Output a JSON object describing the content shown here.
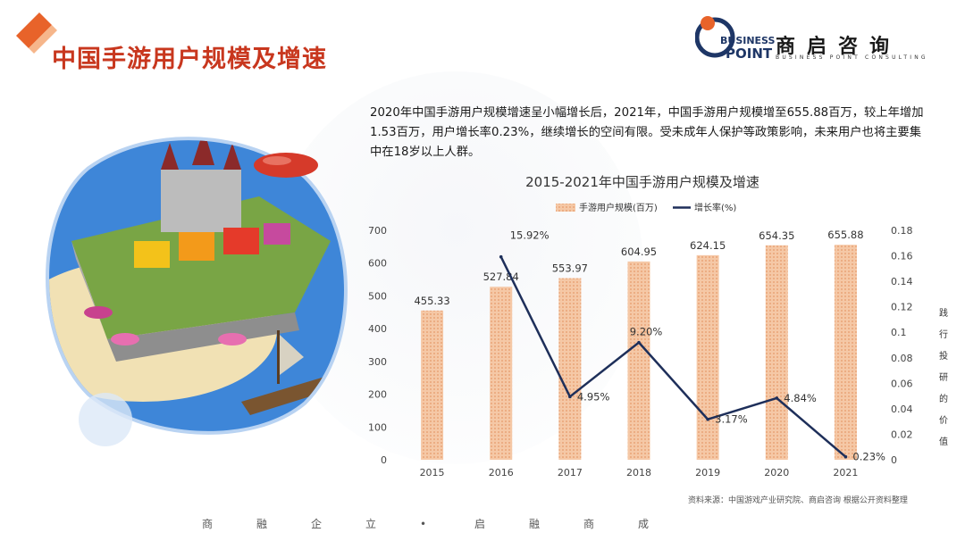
{
  "header": {
    "title": "中国手游用户规模及增速"
  },
  "brand": {
    "en_line1": "BUSINESS",
    "en_line2": "POINT",
    "cn_name": "商启咨询",
    "sub": "BUSINESS POINT CONSULTING",
    "accent_orange": "#e8632a",
    "accent_navy": "#1e3666"
  },
  "summary": {
    "text": "2020年中国手游用户规模增速呈小幅增长后，2021年，中国手游用户规模增至655.88百万，较上年增加1.53百万，用户增长率0.23%，继续增长的空间有限。受未成年人保护等政策影响，未来用户也将主要集中在18岁以上人群。"
  },
  "chart_data": {
    "type": "bar",
    "title": "2015-2021年中国手游用户规模及增速",
    "categories": [
      "2015",
      "2016",
      "2017",
      "2018",
      "2019",
      "2020",
      "2021"
    ],
    "series": [
      {
        "name": "手游用户规模(百万)",
        "type": "bar",
        "axis": "left",
        "values": [
          455.33,
          527.84,
          553.97,
          604.95,
          624.15,
          654.35,
          655.88
        ],
        "labels": [
          "455.33",
          "527.84",
          "553.97",
          "604.95",
          "624.15",
          "654.35",
          "655.88"
        ],
        "color": "#f1b48a"
      },
      {
        "name": "增长率(%)",
        "type": "line",
        "axis": "right",
        "values": [
          null,
          0.1592,
          0.0495,
          0.092,
          0.0317,
          0.0484,
          0.0023
        ],
        "labels": [
          "",
          "15.92%",
          "4.95%",
          "9.20%",
          "3.17%",
          "4.84%",
          "0.23%"
        ],
        "color": "#1e2f5a"
      }
    ],
    "y_left": {
      "min": 0,
      "max": 700,
      "ticks": [
        "0",
        "100",
        "200",
        "300",
        "400",
        "500",
        "600",
        "700"
      ]
    },
    "y_right": {
      "min": 0,
      "max": 0.18,
      "ticks": [
        "0",
        "0.02",
        "0.04",
        "0.06",
        "0.08",
        "0.1",
        "0.12",
        "0.14",
        "0.16",
        "0.18"
      ]
    },
    "legend_position": "top-center",
    "grid": false
  },
  "side_note": "践行投研的价值",
  "source": "资料来源：中国游戏产业研究院、商启咨询 根据公开资料整理",
  "motto": [
    "商",
    "融",
    "企",
    "立",
    "•",
    "启",
    "融",
    "商",
    "成"
  ]
}
